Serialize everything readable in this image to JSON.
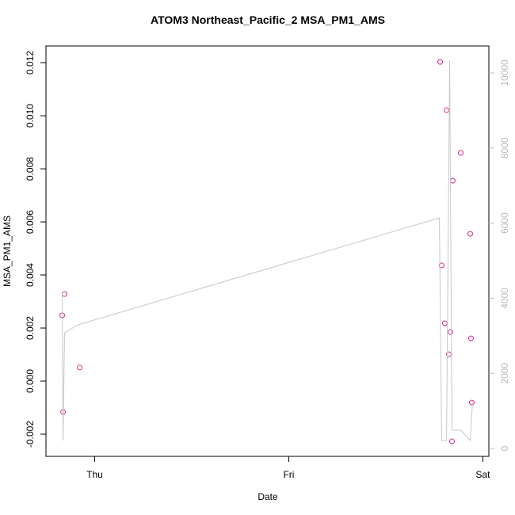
{
  "chart_data": {
    "type": "scatter",
    "title": "ATOM3 Northeast_Pacific_2 MSA_PM1_AMS",
    "xlabel": "Date",
    "ylabel": "MSA_PM1_AMS",
    "xlim": [
      -0.251,
      2.031
    ],
    "xticks": [
      {
        "value": 0,
        "label": "Thu"
      },
      {
        "value": 1,
        "label": "Fri"
      },
      {
        "value": 2,
        "label": "Sat"
      }
    ],
    "ylim": [
      -0.002836,
      0.01263
    ],
    "yticks": [
      -0.002,
      0.0,
      0.002,
      0.004,
      0.006,
      0.008,
      0.01,
      0.012
    ],
    "ytick_labels": [
      "-0.002",
      "0.000",
      "0.002",
      "0.004",
      "0.006",
      "0.008",
      "0.010",
      "0.012"
    ],
    "y2lim": [
      -211,
      10717
    ],
    "y2ticks": [
      0,
      2000,
      4000,
      6000,
      8000,
      10000
    ],
    "y2color": "#bbbbbb",
    "series": [
      {
        "type": "scatter",
        "color": "#e0288c",
        "x": [
          -0.167,
          -0.155,
          -0.163,
          -0.077,
          1.78,
          1.813,
          1.886,
          1.845,
          1.935,
          1.788,
          1.804,
          1.833,
          1.825,
          1.939,
          1.841,
          1.943
        ],
        "values": [
          0.00248,
          0.00328,
          -0.00116,
          0.00051,
          0.01203,
          0.01021,
          0.0086,
          0.00755,
          0.00555,
          0.00436,
          0.00218,
          0.00185,
          0.00101,
          0.00161,
          -0.00227,
          -0.00081
        ]
      },
      {
        "type": "line",
        "color": "#c8c8c8",
        "axis": "y2",
        "x": [
          -0.167,
          -0.163,
          -0.155,
          -0.086,
          1.776,
          1.788,
          1.813,
          1.829,
          1.841,
          1.886,
          1.935,
          1.947
        ],
        "values": [
          4177,
          211,
          3080,
          3291,
          6139,
          211,
          211,
          10338,
          485,
          485,
          211,
          1266
        ]
      }
    ]
  }
}
